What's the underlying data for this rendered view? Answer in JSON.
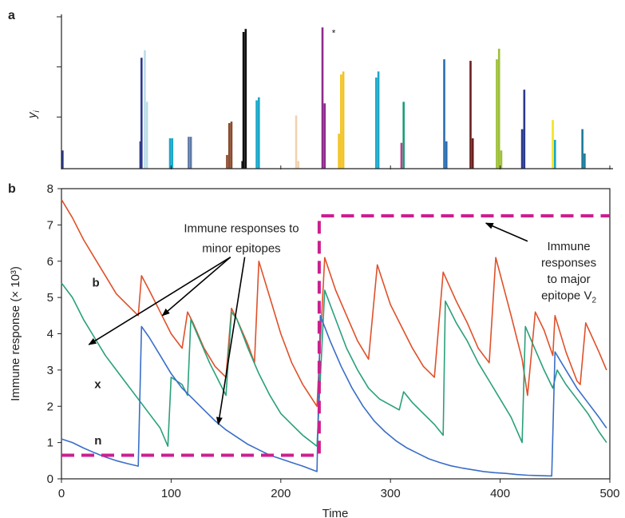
{
  "chart_data": [
    {
      "panel": "a",
      "type": "bar",
      "ylabel": "y",
      "ylabel_subscript": "i",
      "grid": false,
      "star_marker": "*",
      "star_near_x": 240,
      "bars": [
        {
          "x": 1,
          "y": 0.12,
          "color": "#2b3a8c"
        },
        {
          "x": 72,
          "y": 0.18,
          "color": "#2b3a8c"
        },
        {
          "x": 73,
          "y": 0.73,
          "color": "#2b3a8c"
        },
        {
          "x": 76,
          "y": 0.78,
          "color": "#bcdde8"
        },
        {
          "x": 78,
          "y": 0.44,
          "color": "#bcdde8"
        },
        {
          "x": 99,
          "y": 0.2,
          "color": "#1aa7c8"
        },
        {
          "x": 101,
          "y": 0.2,
          "color": "#1aa7c8"
        },
        {
          "x": 116,
          "y": 0.21,
          "color": "#5f7aa6"
        },
        {
          "x": 118,
          "y": 0.21,
          "color": "#5f7aa6"
        },
        {
          "x": 151,
          "y": 0.09,
          "color": "#8a4b2e"
        },
        {
          "x": 153,
          "y": 0.3,
          "color": "#8a4b2e"
        },
        {
          "x": 155,
          "y": 0.31,
          "color": "#8a4b2e"
        },
        {
          "x": 165,
          "y": 0.05,
          "color": "#111111"
        },
        {
          "x": 166,
          "y": 0.9,
          "color": "#111111"
        },
        {
          "x": 168,
          "y": 0.92,
          "color": "#111111"
        },
        {
          "x": 178,
          "y": 0.45,
          "color": "#1aa7c8"
        },
        {
          "x": 180,
          "y": 0.47,
          "color": "#1aa7c8"
        },
        {
          "x": 214,
          "y": 0.35,
          "color": "#f0d2b0"
        },
        {
          "x": 216,
          "y": 0.05,
          "color": "#f0d2b0"
        },
        {
          "x": 238,
          "y": 0.93,
          "color": "#8e2a8c"
        },
        {
          "x": 240,
          "y": 0.43,
          "color": "#8e2a8c"
        },
        {
          "x": 255,
          "y": 0.62,
          "color": "#f2c321"
        },
        {
          "x": 257,
          "y": 0.64,
          "color": "#f2c321"
        },
        {
          "x": 253,
          "y": 0.23,
          "color": "#f2c321"
        },
        {
          "x": 287,
          "y": 0.6,
          "color": "#1aa7c8"
        },
        {
          "x": 289,
          "y": 0.64,
          "color": "#1aa7c8"
        },
        {
          "x": 310,
          "y": 0.17,
          "color": "#c23a8a"
        },
        {
          "x": 312,
          "y": 0.44,
          "color": "#1a9e78"
        },
        {
          "x": 349,
          "y": 0.72,
          "color": "#2a6db0"
        },
        {
          "x": 351,
          "y": 0.18,
          "color": "#2a6db0"
        },
        {
          "x": 373,
          "y": 0.71,
          "color": "#6b1f1f"
        },
        {
          "x": 375,
          "y": 0.2,
          "color": "#6b1f1f"
        },
        {
          "x": 397,
          "y": 0.72,
          "color": "#9dbf3a"
        },
        {
          "x": 399,
          "y": 0.79,
          "color": "#9dbf3a"
        },
        {
          "x": 401,
          "y": 0.12,
          "color": "#9dbf3a"
        },
        {
          "x": 422,
          "y": 0.52,
          "color": "#2b3a8c"
        },
        {
          "x": 420,
          "y": 0.26,
          "color": "#2b3a8c"
        },
        {
          "x": 448,
          "y": 0.32,
          "color": "#f2e321"
        },
        {
          "x": 450,
          "y": 0.19,
          "color": "#1aa7c8"
        },
        {
          "x": 475,
          "y": 0.26,
          "color": "#1a7a9a"
        },
        {
          "x": 477,
          "y": 0.1,
          "color": "#1a7a9a"
        }
      ]
    },
    {
      "panel": "b",
      "type": "line",
      "xlabel": "Time",
      "ylabel": "Immune response (× 10³)",
      "xlim": [
        0,
        500
      ],
      "ylim": [
        0,
        8
      ],
      "x_ticks": [
        0,
        100,
        200,
        300,
        400,
        500
      ],
      "y_ticks": [
        0,
        1,
        2,
        3,
        4,
        5,
        6,
        7,
        8
      ],
      "grid": false,
      "series": [
        {
          "name": "b",
          "color": "#e0502a",
          "points": [
            [
              0,
              7.7
            ],
            [
              10,
              7.2
            ],
            [
              20,
              6.6
            ],
            [
              30,
              6.1
            ],
            [
              40,
              5.6
            ],
            [
              50,
              5.1
            ],
            [
              60,
              4.8
            ],
            [
              70,
              4.5
            ],
            [
              73,
              5.6
            ],
            [
              80,
              5.2
            ],
            [
              90,
              4.6
            ],
            [
              100,
              4.0
            ],
            [
              110,
              3.6
            ],
            [
              115,
              4.6
            ],
            [
              120,
              4.3
            ],
            [
              130,
              3.6
            ],
            [
              140,
              3.1
            ],
            [
              150,
              2.8
            ],
            [
              155,
              4.7
            ],
            [
              160,
              4.4
            ],
            [
              170,
              3.7
            ],
            [
              176,
              3.2
            ],
            [
              180,
              6.0
            ],
            [
              190,
              5.0
            ],
            [
              200,
              4.0
            ],
            [
              210,
              3.2
            ],
            [
              220,
              2.6
            ],
            [
              233,
              2.0
            ],
            [
              240,
              6.1
            ],
            [
              250,
              5.2
            ],
            [
              260,
              4.5
            ],
            [
              270,
              3.8
            ],
            [
              280,
              3.3
            ],
            [
              288,
              5.9
            ],
            [
              300,
              4.8
            ],
            [
              310,
              4.2
            ],
            [
              320,
              3.6
            ],
            [
              330,
              3.1
            ],
            [
              340,
              2.8
            ],
            [
              348,
              5.7
            ],
            [
              360,
              4.9
            ],
            [
              370,
              4.3
            ],
            [
              380,
              3.6
            ],
            [
              390,
              3.2
            ],
            [
              396,
              6.1
            ],
            [
              410,
              4.5
            ],
            [
              420,
              3.3
            ],
            [
              425,
              2.3
            ],
            [
              432,
              4.6
            ],
            [
              440,
              4.1
            ],
            [
              448,
              3.4
            ],
            [
              450,
              4.5
            ],
            [
              460,
              3.5
            ],
            [
              470,
              2.7
            ],
            [
              473,
              2.6
            ],
            [
              478,
              4.3
            ],
            [
              490,
              3.5
            ],
            [
              497,
              3.0
            ]
          ]
        },
        {
          "name": "x",
          "color": "#2aa07a",
          "points": [
            [
              0,
              5.4
            ],
            [
              10,
              5.0
            ],
            [
              20,
              4.4
            ],
            [
              30,
              3.9
            ],
            [
              40,
              3.4
            ],
            [
              50,
              3.0
            ],
            [
              60,
              2.6
            ],
            [
              70,
              2.2
            ],
            [
              80,
              1.8
            ],
            [
              90,
              1.4
            ],
            [
              97,
              0.9
            ],
            [
              100,
              2.8
            ],
            [
              105,
              2.7
            ],
            [
              110,
              2.6
            ],
            [
              115,
              2.3
            ],
            [
              118,
              4.4
            ],
            [
              125,
              3.9
            ],
            [
              135,
              3.2
            ],
            [
              145,
              2.6
            ],
            [
              150,
              2.3
            ],
            [
              155,
              4.6
            ],
            [
              160,
              4.4
            ],
            [
              170,
              3.6
            ],
            [
              180,
              2.9
            ],
            [
              190,
              2.3
            ],
            [
              200,
              1.8
            ],
            [
              210,
              1.5
            ],
            [
              220,
              1.2
            ],
            [
              233,
              0.9
            ],
            [
              240,
              5.2
            ],
            [
              250,
              4.4
            ],
            [
              260,
              3.6
            ],
            [
              270,
              3.0
            ],
            [
              280,
              2.5
            ],
            [
              290,
              2.2
            ],
            [
              308,
              1.9
            ],
            [
              312,
              2.4
            ],
            [
              320,
              2.1
            ],
            [
              330,
              1.8
            ],
            [
              340,
              1.5
            ],
            [
              348,
              1.2
            ],
            [
              350,
              4.9
            ],
            [
              360,
              4.3
            ],
            [
              370,
              3.8
            ],
            [
              380,
              3.2
            ],
            [
              390,
              2.7
            ],
            [
              400,
              2.2
            ],
            [
              410,
              1.7
            ],
            [
              420,
              1.0
            ],
            [
              423,
              4.2
            ],
            [
              430,
              3.7
            ],
            [
              440,
              3.0
            ],
            [
              448,
              2.5
            ],
            [
              452,
              3.0
            ],
            [
              460,
              2.6
            ],
            [
              470,
              2.2
            ],
            [
              480,
              1.8
            ],
            [
              490,
              1.3
            ],
            [
              497,
              1.0
            ]
          ]
        },
        {
          "name": "n",
          "color": "#3a6ec8",
          "points": [
            [
              0,
              1.1
            ],
            [
              10,
              1.0
            ],
            [
              20,
              0.85
            ],
            [
              30,
              0.72
            ],
            [
              40,
              0.6
            ],
            [
              50,
              0.5
            ],
            [
              60,
              0.42
            ],
            [
              70,
              0.35
            ],
            [
              73,
              4.2
            ],
            [
              80,
              3.9
            ],
            [
              90,
              3.4
            ],
            [
              100,
              2.9
            ],
            [
              110,
              2.5
            ],
            [
              120,
              2.2
            ],
            [
              130,
              1.9
            ],
            [
              140,
              1.6
            ],
            [
              150,
              1.35
            ],
            [
              160,
              1.15
            ],
            [
              170,
              0.95
            ],
            [
              180,
              0.8
            ],
            [
              190,
              0.65
            ],
            [
              200,
              0.55
            ],
            [
              210,
              0.45
            ],
            [
              220,
              0.35
            ],
            [
              233,
              0.2
            ],
            [
              236,
              4.5
            ],
            [
              245,
              3.8
            ],
            [
              255,
              3.1
            ],
            [
              265,
              2.5
            ],
            [
              275,
              2.0
            ],
            [
              285,
              1.6
            ],
            [
              295,
              1.3
            ],
            [
              305,
              1.05
            ],
            [
              315,
              0.85
            ],
            [
              325,
              0.7
            ],
            [
              335,
              0.55
            ],
            [
              345,
              0.45
            ],
            [
              355,
              0.36
            ],
            [
              365,
              0.3
            ],
            [
              375,
              0.25
            ],
            [
              385,
              0.2
            ],
            [
              395,
              0.17
            ],
            [
              405,
              0.15
            ],
            [
              415,
              0.12
            ],
            [
              425,
              0.1
            ],
            [
              435,
              0.09
            ],
            [
              447,
              0.08
            ],
            [
              450,
              3.5
            ],
            [
              460,
              3.0
            ],
            [
              470,
              2.5
            ],
            [
              480,
              2.1
            ],
            [
              490,
              1.7
            ],
            [
              497,
              1.4
            ]
          ]
        },
        {
          "name": "major",
          "color": "#cc1f8f",
          "dashed": true,
          "points": [
            [
              0,
              0.65
            ],
            [
              235,
              0.65
            ],
            [
              235,
              7.25
            ],
            [
              500,
              7.25
            ]
          ]
        }
      ],
      "series_labels": [
        {
          "text": "b",
          "x": 28,
          "y": 5.3
        },
        {
          "text": "x",
          "x": 30,
          "y": 2.5
        },
        {
          "text": "n",
          "x": 30,
          "y": 0.95
        }
      ],
      "annotations": [
        {
          "lines": [
            "Immune responses to",
            "minor epitopes"
          ],
          "text_x": 135,
          "text_y": [
            6.8,
            6.25
          ],
          "arrows_from": [
            [
              125,
              6.2
            ],
            [
              125,
              6.2
            ],
            [
              138,
              6.2
            ]
          ],
          "arrows_to": [
            [
              25,
              3.7
            ],
            [
              92,
              4.5
            ],
            [
              143,
              1.5
            ]
          ]
        },
        {
          "lines": [
            "Immune",
            "responses",
            "to major",
            "epitope V"
          ],
          "subscript": "2",
          "text_x": 448,
          "text_y": [
            6.3,
            5.85,
            5.4,
            4.95
          ],
          "arrow_from": [
            425,
            6.55
          ],
          "arrow_to": [
            387,
            7.05
          ]
        }
      ]
    }
  ],
  "panel_a_label": "a",
  "panel_b_label": "b"
}
